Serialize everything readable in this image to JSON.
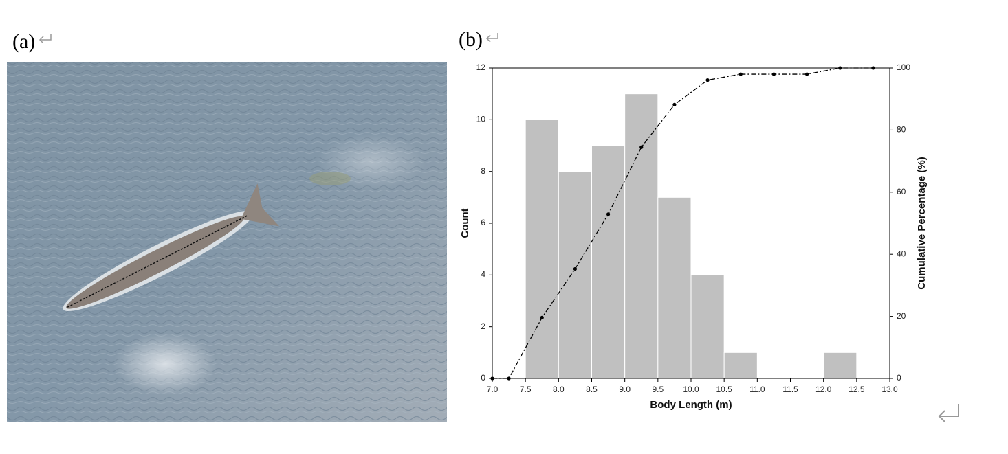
{
  "panel_labels": [
    "(a)",
    "(b)"
  ],
  "chart_data": {
    "type": "histogram",
    "xlabel": "Body Length (m)",
    "ylabel": "Count",
    "y2label": "Cumulative Percentage (%)",
    "bins": [
      7.5,
      8.0,
      8.5,
      9.0,
      9.5,
      10.0,
      10.5,
      11.0,
      11.5,
      12.0,
      12.5
    ],
    "values": [
      10,
      8,
      9,
      11,
      7,
      4,
      1,
      0,
      0,
      1
    ],
    "color": "#c0c0c0",
    "cumulative": {
      "axis": "y2",
      "color": "#000000",
      "x": [
        7.0,
        7.25,
        7.75,
        8.25,
        8.75,
        9.25,
        9.75,
        10.25,
        10.75,
        11.25,
        11.75,
        12.25,
        12.75
      ],
      "values": [
        0,
        0,
        19.6,
        35.3,
        52.9,
        74.5,
        88.2,
        96.1,
        98.0,
        98.0,
        98.0,
        100,
        100
      ]
    },
    "xlim": [
      7,
      13
    ],
    "xticks": [
      {
        "value": 7,
        "label": "7.0"
      },
      {
        "value": 7.5,
        "label": "7.5"
      },
      {
        "value": 8,
        "label": "8.0"
      },
      {
        "value": 8.5,
        "label": "8.5"
      },
      {
        "value": 9,
        "label": "9.0"
      },
      {
        "value": 9.5,
        "label": "9.5"
      },
      {
        "value": 10,
        "label": "10.0"
      },
      {
        "value": 10.5,
        "label": "10.5"
      },
      {
        "value": 11,
        "label": "11.0"
      },
      {
        "value": 11.5,
        "label": "11.5"
      },
      {
        "value": 12,
        "label": "12.0"
      },
      {
        "value": 12.5,
        "label": "12.5"
      },
      {
        "value": 13,
        "label": "13.0"
      }
    ],
    "ylim": [
      0,
      12
    ],
    "yticks": [
      0,
      2,
      4,
      6,
      8,
      10,
      12
    ],
    "y2lim": [
      0,
      100
    ],
    "y2ticks": [
      0,
      20,
      40,
      60,
      80,
      100
    ],
    "grid": false
  }
}
